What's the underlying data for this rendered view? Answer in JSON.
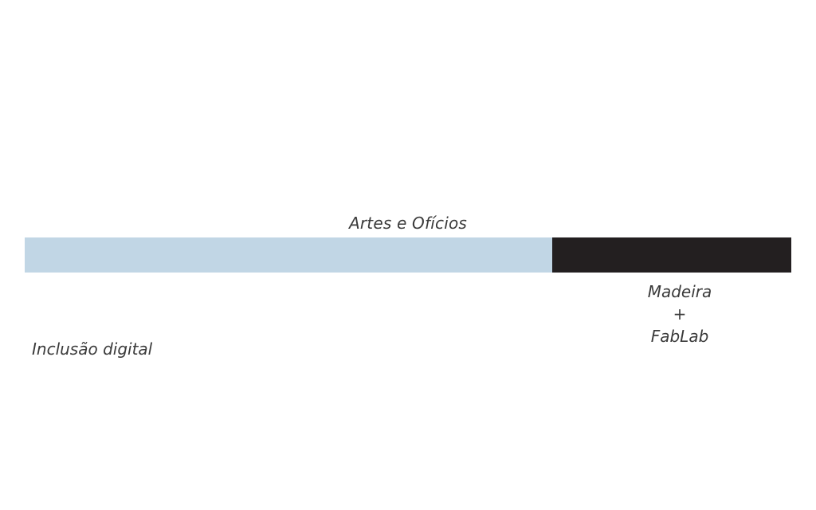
{
  "diagram": {
    "top_label": "Artes e Ofícios",
    "left_label": "Inclusão digital",
    "right_label_lines": [
      "Madeira",
      "+",
      "FabLab"
    ]
  },
  "segments": [
    {
      "color": "#c1d6e5"
    },
    {
      "color": "#231f20"
    }
  ]
}
